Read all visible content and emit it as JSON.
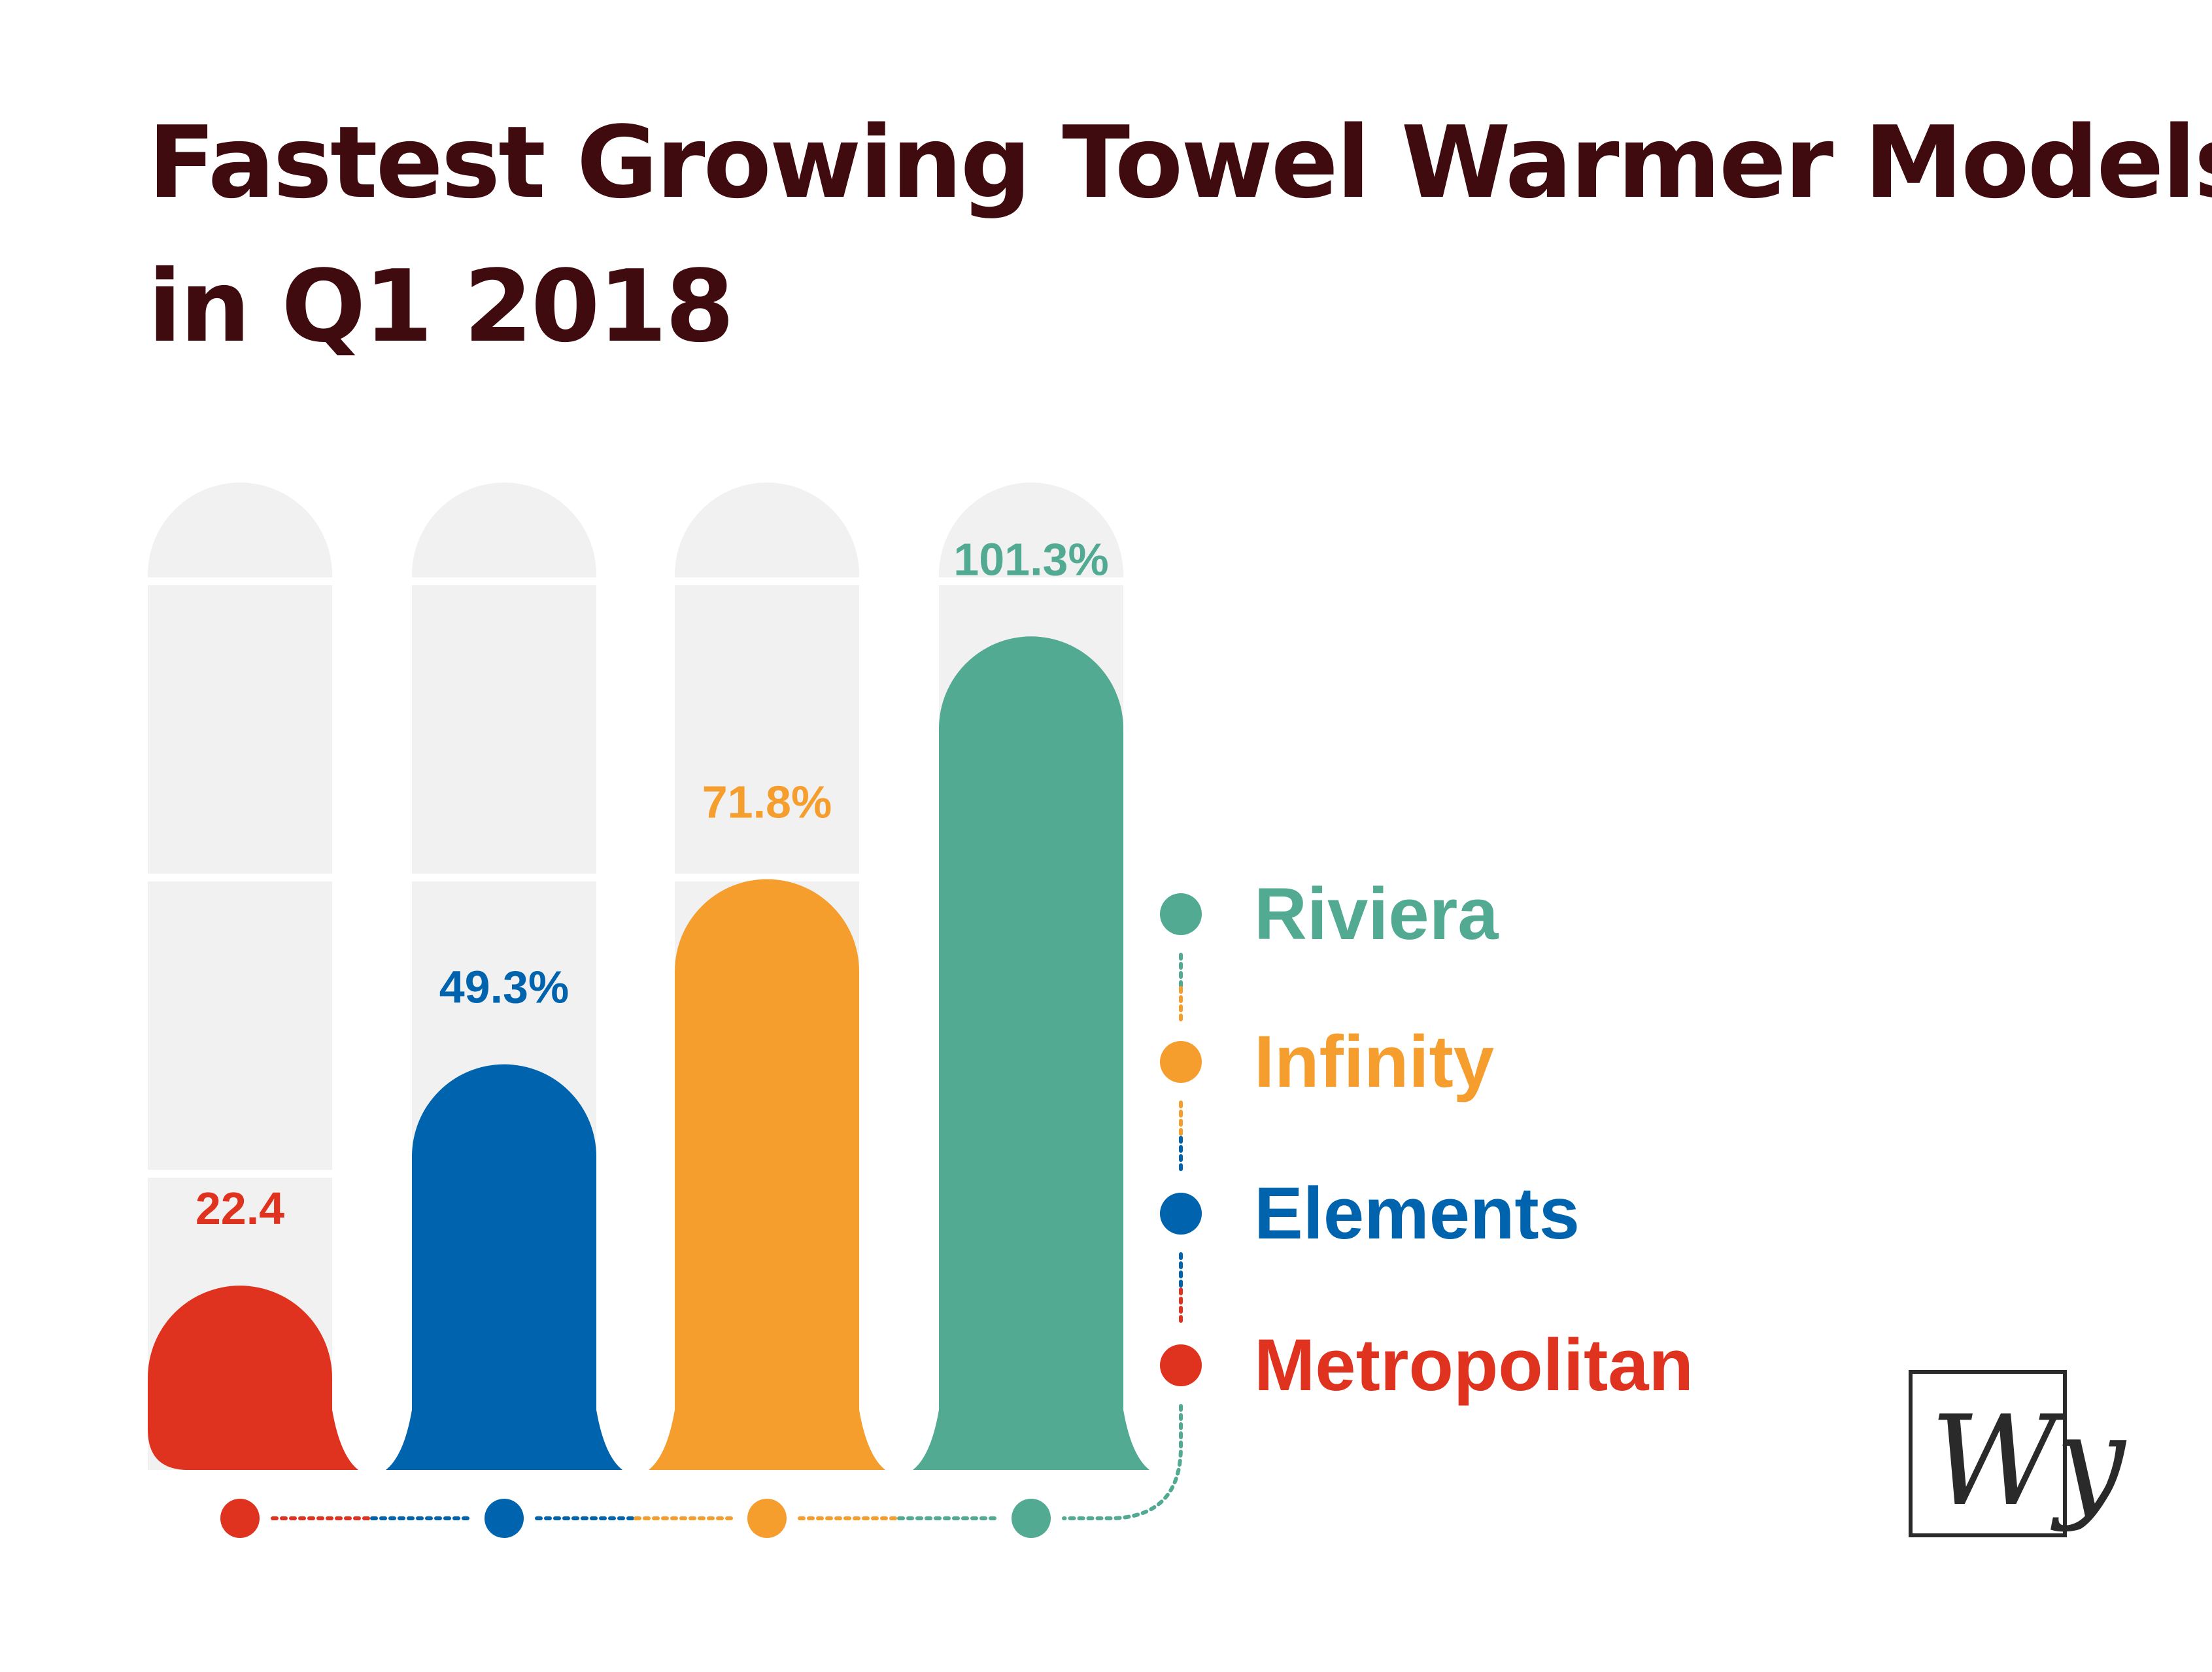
{
  "title_lines": [
    "Fastest Growing Towel Warmer Models",
    "in Q1 2018"
  ],
  "colors": {
    "title": "#3f0b0f",
    "track": "#f1f1f1",
    "gridline": "#ffffff",
    "logo": "#2a2a2a"
  },
  "logo_text": "Wy",
  "chart_data": {
    "type": "bar",
    "categories": [
      "Metropolitan",
      "Elements",
      "Infinity",
      "Riviera"
    ],
    "values": [
      22.4,
      49.3,
      71.8,
      101.3
    ],
    "value_labels": [
      "22.4",
      "49.3%",
      "71.8%",
      "101.3%"
    ],
    "series_colors": [
      "#e0331f",
      "#0063ae",
      "#f59e2e",
      "#53aa93"
    ],
    "legend": {
      "placement": "right",
      "order": [
        "Riviera",
        "Infinity",
        "Elements",
        "Metropolitan"
      ]
    },
    "ylim": [
      0,
      120
    ],
    "grid": true,
    "gridline_values": [
      36,
      72,
      108
    ],
    "xlabel": "",
    "ylabel": ""
  }
}
